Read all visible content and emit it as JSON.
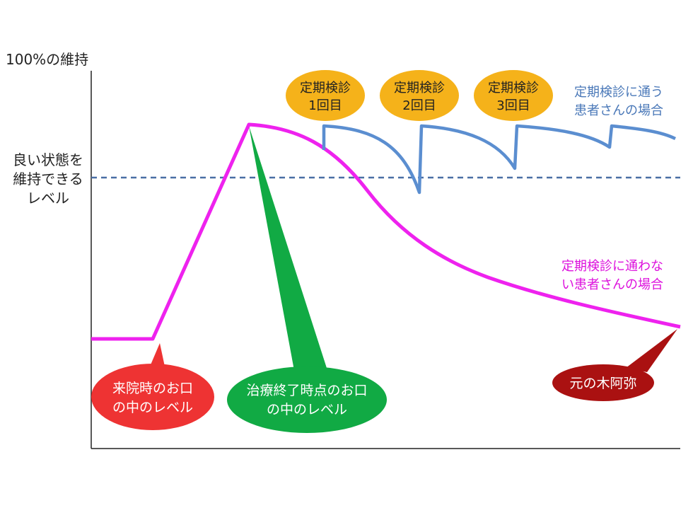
{
  "y_axis": {
    "top_label": "100%の維持",
    "threshold_label_lines": [
      "良い状態を",
      "維持できる",
      "レベル"
    ]
  },
  "checkups": [
    {
      "lines": [
        "定期検診",
        "1回目"
      ]
    },
    {
      "lines": [
        "定期検診",
        "2回目"
      ]
    },
    {
      "lines": [
        "定期検診",
        "3回目"
      ]
    }
  ],
  "curves": {
    "with_checkups": {
      "label_lines": [
        "定期検診に通う",
        "患者さんの場合"
      ],
      "color": "#5b8ed0"
    },
    "without_checkups": {
      "label_lines": [
        "定期検診に通わな",
        "い患者さんの場合"
      ],
      "color": "#ee22ee"
    }
  },
  "callouts": {
    "visit": {
      "lines": [
        "来院時のお口",
        "の中のレベル"
      ],
      "color": "#ee3333"
    },
    "treatment_end": {
      "lines": [
        "治療終了時点のお口",
        "の中のレベル"
      ],
      "color": "#11aa44"
    },
    "back_to_start": {
      "lines": [
        "元の木阿弥"
      ],
      "color": "#aa1111"
    }
  },
  "colors": {
    "badge": "#f5b21a",
    "threshold": "#4a6fa5",
    "axis": "#222222"
  }
}
